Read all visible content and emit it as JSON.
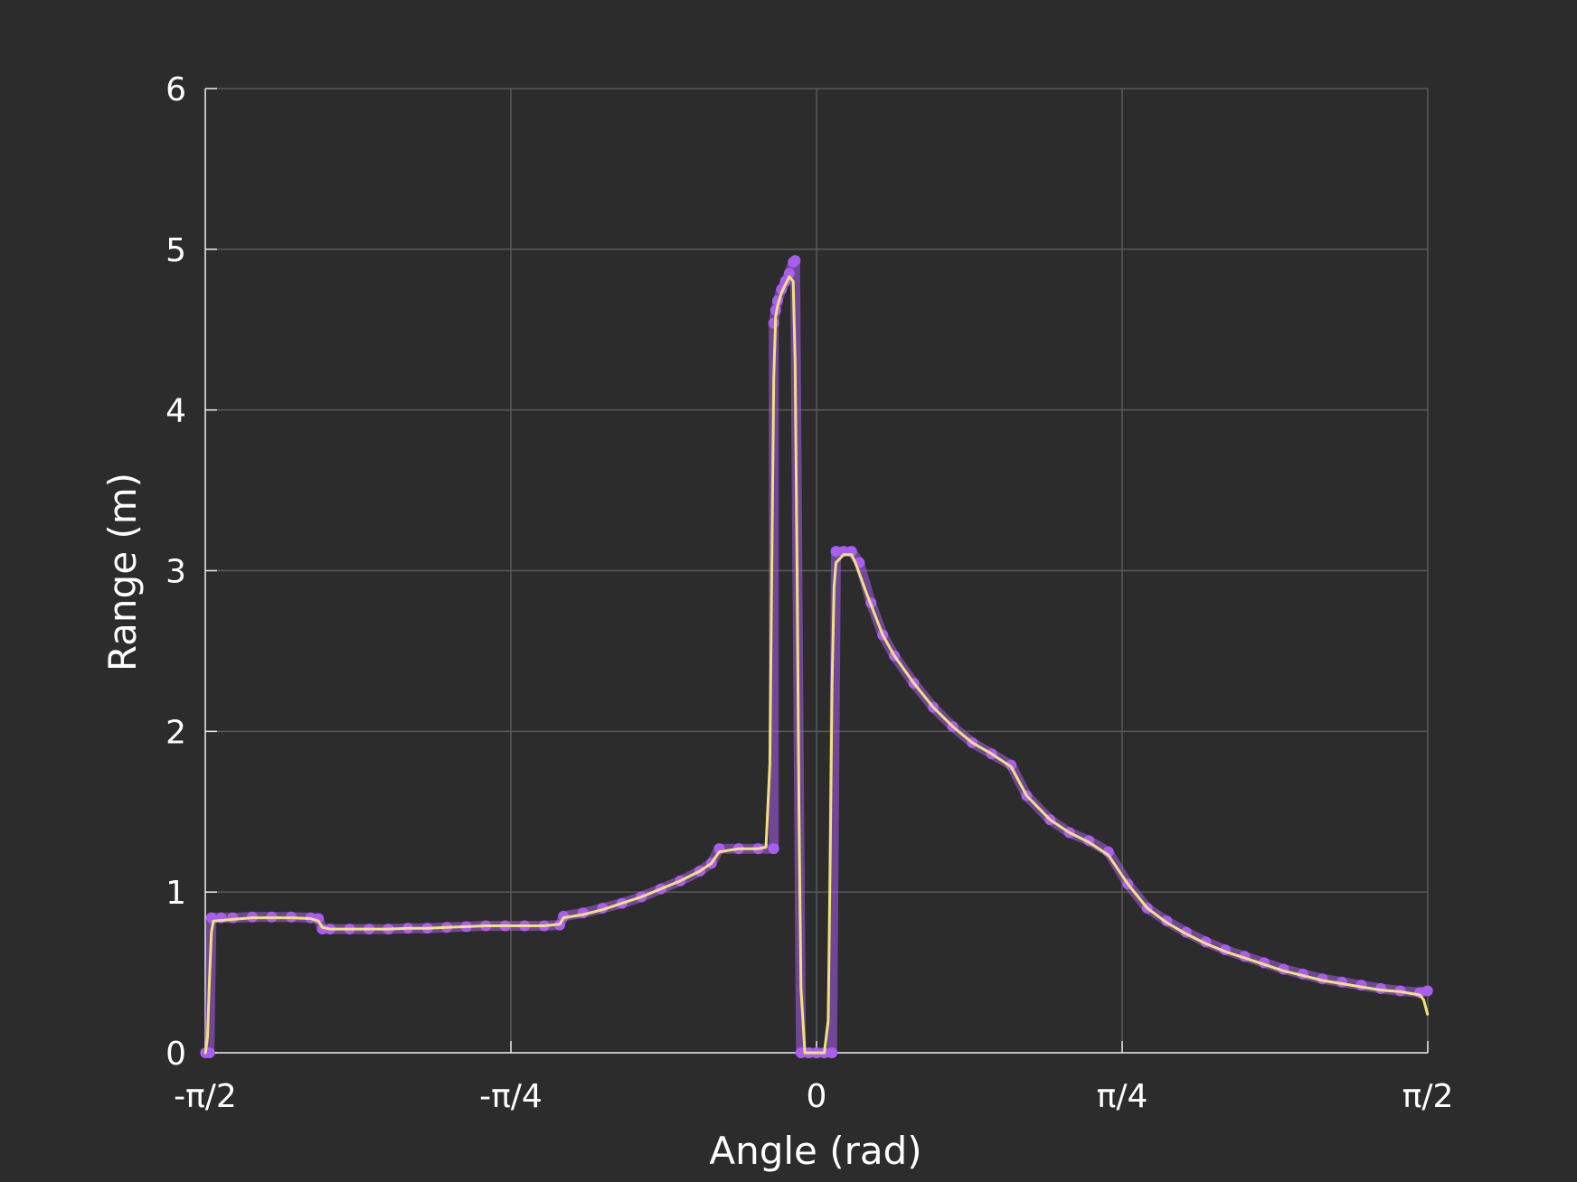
{
  "chart_data": {
    "type": "scatter",
    "title": "",
    "xlabel": "Angle (rad)",
    "ylabel": "Range (m)",
    "xlim": [
      -1.5708,
      1.5708
    ],
    "ylim": [
      0,
      6
    ],
    "grid": true,
    "legend": "none",
    "x_ticks": [
      {
        "value": -1.5708,
        "label": "-π/2"
      },
      {
        "value": -0.7854,
        "label": "-π/4"
      },
      {
        "value": 0,
        "label": "0"
      },
      {
        "value": 0.7854,
        "label": "π/4"
      },
      {
        "value": 1.5708,
        "label": "π/2"
      }
    ],
    "y_ticks": [
      {
        "value": 0,
        "label": "0"
      },
      {
        "value": 1,
        "label": "1"
      },
      {
        "value": 2,
        "label": "2"
      },
      {
        "value": 3,
        "label": "3"
      },
      {
        "value": 4,
        "label": "4"
      },
      {
        "value": 5,
        "label": "5"
      },
      {
        "value": 6,
        "label": "6"
      }
    ],
    "series": [
      {
        "kind": "scatter",
        "color": "#a95ef0",
        "points": [
          [
            -1.57,
            0.0
          ],
          [
            -1.56,
            0.0
          ],
          [
            -1.555,
            0.84
          ],
          [
            -1.53,
            0.84
          ],
          [
            -1.5,
            0.84
          ],
          [
            -1.45,
            0.845
          ],
          [
            -1.4,
            0.845
          ],
          [
            -1.35,
            0.845
          ],
          [
            -1.3,
            0.84
          ],
          [
            -1.28,
            0.835
          ],
          [
            -1.27,
            0.77
          ],
          [
            -1.25,
            0.77
          ],
          [
            -1.2,
            0.77
          ],
          [
            -1.15,
            0.77
          ],
          [
            -1.1,
            0.77
          ],
          [
            -1.05,
            0.775
          ],
          [
            -1.0,
            0.775
          ],
          [
            -0.95,
            0.78
          ],
          [
            -0.9,
            0.785
          ],
          [
            -0.85,
            0.79
          ],
          [
            -0.8,
            0.79
          ],
          [
            -0.75,
            0.79
          ],
          [
            -0.7,
            0.79
          ],
          [
            -0.66,
            0.795
          ],
          [
            -0.65,
            0.85
          ],
          [
            -0.6,
            0.87
          ],
          [
            -0.55,
            0.9
          ],
          [
            -0.5,
            0.93
          ],
          [
            -0.45,
            0.97
          ],
          [
            -0.4,
            1.02
          ],
          [
            -0.35,
            1.07
          ],
          [
            -0.3,
            1.13
          ],
          [
            -0.27,
            1.18
          ],
          [
            -0.25,
            1.27
          ],
          [
            -0.2,
            1.27
          ],
          [
            -0.15,
            1.27
          ],
          [
            -0.11,
            1.27
          ],
          [
            -0.11,
            4.54
          ],
          [
            -0.105,
            4.62
          ],
          [
            -0.1,
            4.68
          ],
          [
            -0.09,
            4.75
          ],
          [
            -0.08,
            4.8
          ],
          [
            -0.07,
            4.85
          ],
          [
            -0.06,
            4.92
          ],
          [
            -0.055,
            4.93
          ],
          [
            -0.04,
            0.0
          ],
          [
            -0.02,
            0.0
          ],
          [
            0.0,
            0.0
          ],
          [
            0.02,
            0.0
          ],
          [
            0.04,
            0.0
          ],
          [
            0.05,
            3.12
          ],
          [
            0.07,
            3.12
          ],
          [
            0.09,
            3.12
          ],
          [
            0.11,
            3.05
          ],
          [
            0.14,
            2.8
          ],
          [
            0.17,
            2.6
          ],
          [
            0.2,
            2.47
          ],
          [
            0.25,
            2.3
          ],
          [
            0.3,
            2.15
          ],
          [
            0.35,
            2.03
          ],
          [
            0.4,
            1.93
          ],
          [
            0.45,
            1.86
          ],
          [
            0.5,
            1.79
          ],
          [
            0.54,
            1.6
          ],
          [
            0.6,
            1.45
          ],
          [
            0.65,
            1.37
          ],
          [
            0.7,
            1.32
          ],
          [
            0.75,
            1.25
          ],
          [
            0.8,
            1.05
          ],
          [
            0.85,
            0.9
          ],
          [
            0.9,
            0.82
          ],
          [
            0.95,
            0.75
          ],
          [
            1.0,
            0.69
          ],
          [
            1.05,
            0.64
          ],
          [
            1.1,
            0.6
          ],
          [
            1.15,
            0.56
          ],
          [
            1.2,
            0.52
          ],
          [
            1.25,
            0.49
          ],
          [
            1.3,
            0.46
          ],
          [
            1.35,
            0.44
          ],
          [
            1.4,
            0.42
          ],
          [
            1.45,
            0.4
          ],
          [
            1.5,
            0.385
          ],
          [
            1.55,
            0.375
          ],
          [
            1.57,
            0.385
          ]
        ]
      },
      {
        "kind": "line",
        "color": "#f0e27a",
        "points": [
          [
            -1.57,
            0.0
          ],
          [
            -1.565,
            0.1
          ],
          [
            -1.56,
            0.45
          ],
          [
            -1.555,
            0.75
          ],
          [
            -1.55,
            0.82
          ],
          [
            -1.5,
            0.83
          ],
          [
            -1.45,
            0.84
          ],
          [
            -1.4,
            0.84
          ],
          [
            -1.35,
            0.84
          ],
          [
            -1.3,
            0.835
          ],
          [
            -1.28,
            0.82
          ],
          [
            -1.27,
            0.78
          ],
          [
            -1.25,
            0.77
          ],
          [
            -1.2,
            0.77
          ],
          [
            -1.15,
            0.77
          ],
          [
            -1.1,
            0.77
          ],
          [
            -1.05,
            0.775
          ],
          [
            -1.0,
            0.775
          ],
          [
            -0.95,
            0.78
          ],
          [
            -0.9,
            0.785
          ],
          [
            -0.85,
            0.79
          ],
          [
            -0.8,
            0.79
          ],
          [
            -0.75,
            0.79
          ],
          [
            -0.7,
            0.79
          ],
          [
            -0.66,
            0.8
          ],
          [
            -0.65,
            0.84
          ],
          [
            -0.6,
            0.86
          ],
          [
            -0.55,
            0.89
          ],
          [
            -0.5,
            0.93
          ],
          [
            -0.45,
            0.97
          ],
          [
            -0.4,
            1.02
          ],
          [
            -0.35,
            1.07
          ],
          [
            -0.3,
            1.13
          ],
          [
            -0.27,
            1.18
          ],
          [
            -0.25,
            1.25
          ],
          [
            -0.2,
            1.27
          ],
          [
            -0.15,
            1.27
          ],
          [
            -0.13,
            1.28
          ],
          [
            -0.12,
            1.8
          ],
          [
            -0.115,
            3.0
          ],
          [
            -0.11,
            4.2
          ],
          [
            -0.105,
            4.58
          ],
          [
            -0.1,
            4.65
          ],
          [
            -0.09,
            4.73
          ],
          [
            -0.08,
            4.78
          ],
          [
            -0.07,
            4.83
          ],
          [
            -0.06,
            4.8
          ],
          [
            -0.055,
            4.3
          ],
          [
            -0.05,
            3.0
          ],
          [
            -0.045,
            1.5
          ],
          [
            -0.04,
            0.4
          ],
          [
            -0.03,
            0.0
          ],
          [
            -0.02,
            0.0
          ],
          [
            0.0,
            0.0
          ],
          [
            0.02,
            0.0
          ],
          [
            0.03,
            0.2
          ],
          [
            0.035,
            1.2
          ],
          [
            0.04,
            2.3
          ],
          [
            0.045,
            2.9
          ],
          [
            0.05,
            3.05
          ],
          [
            0.07,
            3.1
          ],
          [
            0.09,
            3.1
          ],
          [
            0.1,
            3.05
          ],
          [
            0.13,
            2.85
          ],
          [
            0.17,
            2.6
          ],
          [
            0.2,
            2.47
          ],
          [
            0.25,
            2.3
          ],
          [
            0.3,
            2.15
          ],
          [
            0.35,
            2.03
          ],
          [
            0.4,
            1.93
          ],
          [
            0.45,
            1.86
          ],
          [
            0.5,
            1.78
          ],
          [
            0.54,
            1.6
          ],
          [
            0.6,
            1.45
          ],
          [
            0.65,
            1.37
          ],
          [
            0.7,
            1.31
          ],
          [
            0.75,
            1.23
          ],
          [
            0.8,
            1.05
          ],
          [
            0.85,
            0.9
          ],
          [
            0.9,
            0.81
          ],
          [
            0.95,
            0.74
          ],
          [
            1.0,
            0.68
          ],
          [
            1.05,
            0.63
          ],
          [
            1.1,
            0.59
          ],
          [
            1.15,
            0.55
          ],
          [
            1.2,
            0.51
          ],
          [
            1.25,
            0.48
          ],
          [
            1.3,
            0.45
          ],
          [
            1.35,
            0.43
          ],
          [
            1.4,
            0.41
          ],
          [
            1.45,
            0.39
          ],
          [
            1.5,
            0.38
          ],
          [
            1.55,
            0.36
          ],
          [
            1.56,
            0.33
          ],
          [
            1.57,
            0.24
          ]
        ]
      }
    ]
  }
}
